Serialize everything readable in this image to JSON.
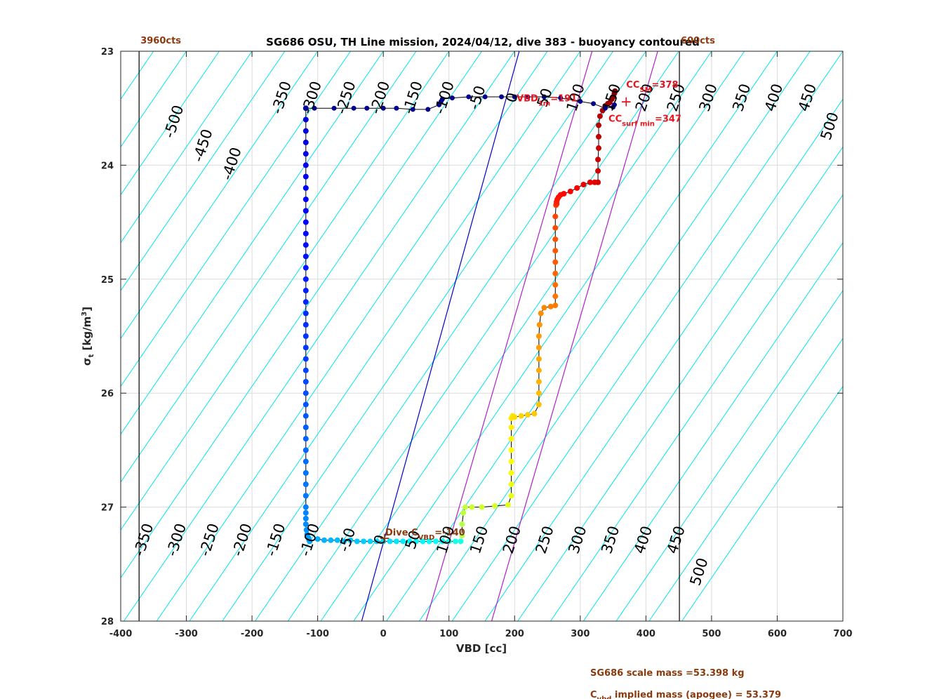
{
  "chart_data": {
    "type": "scatter",
    "title": "SG686 OSU, TH Line mission, 2024/04/12, dive 383 - buoyancy contoured",
    "xlabel": "VBD [cc]",
    "ylabel": "σt [kg/m3]",
    "ylabel_main": "σ",
    "ylabel_sub": "t",
    "ylabel_unit_pre": " [kg/m",
    "ylabel_unit_sup": "3",
    "ylabel_unit_post": "]",
    "xlim": [
      -400,
      700
    ],
    "ylim": [
      28,
      23
    ],
    "y_reversed": true,
    "grid": true,
    "xticks": [
      -400,
      -300,
      -200,
      -100,
      0,
      100,
      200,
      300,
      400,
      500,
      600,
      700
    ],
    "yticks": [
      23,
      24,
      25,
      26,
      27,
      28
    ],
    "contour_slope": 0.0084,
    "contour_levels": [
      -550,
      -500,
      -450,
      -400,
      -350,
      -300,
      -250,
      -200,
      -150,
      -100,
      -50,
      0,
      50,
      100,
      150,
      200,
      250,
      300,
      350,
      400,
      450,
      500,
      550,
      600,
      650,
      700,
      750,
      800,
      850,
      900,
      950,
      1000,
      1050
    ],
    "contour_labels_top": [
      {
        "text": "-500",
        "x": -312,
        "y": 23.63
      },
      {
        "text": "-450",
        "x": -268,
        "y": 23.84
      },
      {
        "text": "-400",
        "x": -224,
        "y": 24.0
      },
      {
        "text": "-350",
        "x": -148,
        "y": 23.42
      },
      {
        "text": "-300",
        "x": -102,
        "y": 23.42
      },
      {
        "text": "-250",
        "x": -50,
        "y": 23.42
      },
      {
        "text": "-200",
        "x": 2,
        "y": 23.42
      },
      {
        "text": "-150",
        "x": 52,
        "y": 23.42
      },
      {
        "text": "-100",
        "x": 100,
        "y": 23.42
      },
      {
        "text": "-50",
        "x": 150,
        "y": 23.42
      },
      {
        "text": "0",
        "x": 203,
        "y": 23.42
      },
      {
        "text": "50",
        "x": 253,
        "y": 23.42
      },
      {
        "text": "100",
        "x": 300,
        "y": 23.42
      },
      {
        "text": "150",
        "x": 355,
        "y": 23.42
      },
      {
        "text": "200",
        "x": 405,
        "y": 23.42
      },
      {
        "text": "250",
        "x": 453,
        "y": 23.42
      },
      {
        "text": "300",
        "x": 502,
        "y": 23.42
      },
      {
        "text": "350",
        "x": 553,
        "y": 23.42
      },
      {
        "text": "400",
        "x": 602,
        "y": 23.42
      },
      {
        "text": "450",
        "x": 653,
        "y": 23.42
      },
      {
        "text": "500",
        "x": 687,
        "y": 23.67
      }
    ],
    "contour_labels_bottom": [
      {
        "text": "-350",
        "x": -358,
        "y": 27.3
      },
      {
        "text": "-300",
        "x": -308,
        "y": 27.3
      },
      {
        "text": "-250",
        "x": -258,
        "y": 27.3
      },
      {
        "text": "-200",
        "x": -208,
        "y": 27.3
      },
      {
        "text": "-150",
        "x": -157,
        "y": 27.3
      },
      {
        "text": "-100",
        "x": -105,
        "y": 27.3
      },
      {
        "text": "-50",
        "x": -48,
        "y": 27.3
      },
      {
        "text": "0",
        "x": 2,
        "y": 27.3
      },
      {
        "text": "50",
        "x": 52,
        "y": 27.3
      },
      {
        "text": "100",
        "x": 102,
        "y": 27.3
      },
      {
        "text": "150",
        "x": 153,
        "y": 27.3
      },
      {
        "text": "200",
        "x": 203,
        "y": 27.3
      },
      {
        "text": "250",
        "x": 253,
        "y": 27.3
      },
      {
        "text": "300",
        "x": 303,
        "y": 27.3
      },
      {
        "text": "350",
        "x": 353,
        "y": 27.3
      },
      {
        "text": "400",
        "x": 403,
        "y": 27.3
      },
      {
        "text": "450",
        "x": 453,
        "y": 27.3
      },
      {
        "text": "500",
        "x": 488,
        "y": 27.58
      }
    ],
    "vertical_lines": [
      {
        "x": -372,
        "label": "3960cts",
        "color": "#000000"
      },
      {
        "x": 451,
        "label": "600cts",
        "color": "#000000"
      }
    ],
    "reference_lines": [
      {
        "color": "#0000c8",
        "p1": [
          -33,
          28
        ],
        "p2": [
          207,
          23
        ]
      },
      {
        "color": "#b020c8",
        "p1": [
          65,
          28
        ],
        "p2": [
          318,
          23
        ]
      },
      {
        "color": "#b020c8",
        "p1": [
          165,
          28
        ],
        "p2": [
          418,
          23
        ]
      }
    ],
    "series": [
      {
        "name": "dive",
        "color_scale": "jet",
        "x": [
          -118,
          -118,
          -118,
          -118,
          -118,
          -118,
          -118,
          -118,
          -118,
          -118,
          -118,
          -118,
          -118,
          -118,
          -118,
          -118,
          -118,
          -118,
          -118,
          -118,
          -118,
          -118,
          -118,
          -118,
          -118,
          -118,
          -118,
          -118,
          -118,
          -118,
          -118,
          -118,
          -118,
          -118,
          -118,
          -118,
          -118,
          -118,
          -118,
          -117,
          -116,
          -114,
          -113,
          -112,
          -100,
          -90,
          -80,
          -70,
          -60,
          -50,
          -40,
          -30,
          -20,
          -10,
          0,
          10,
          20,
          30,
          40,
          50,
          60,
          70,
          80,
          90,
          100,
          110,
          118
        ],
        "y": [
          23.5,
          23.6,
          23.7,
          23.8,
          23.9,
          24.0,
          24.1,
          24.2,
          24.3,
          24.4,
          24.5,
          24.6,
          24.7,
          24.8,
          24.9,
          25.0,
          25.1,
          25.2,
          25.3,
          25.4,
          25.5,
          25.6,
          25.7,
          25.8,
          25.9,
          26.0,
          26.1,
          26.2,
          26.3,
          26.4,
          26.5,
          26.6,
          26.7,
          26.8,
          26.9,
          27.0,
          27.05,
          27.1,
          27.15,
          27.2,
          27.24,
          27.27,
          27.29,
          27.3,
          27.28,
          27.29,
          27.29,
          27.29,
          27.3,
          27.29,
          27.3,
          27.3,
          27.3,
          27.3,
          27.3,
          27.3,
          27.3,
          27.3,
          27.3,
          27.3,
          27.3,
          27.3,
          27.3,
          27.3,
          27.3,
          27.3,
          27.3
        ]
      },
      {
        "name": "climb",
        "color_scale": "jet",
        "x": [
          120,
          120,
          122,
          125,
          135,
          150,
          170,
          190,
          195,
          195,
          195,
          195,
          195,
          195,
          195,
          195,
          197,
          200,
          210,
          220,
          230,
          237,
          237,
          237,
          237,
          237,
          237,
          237,
          238,
          240,
          245,
          255,
          262,
          262,
          262,
          262,
          262,
          262,
          262,
          262,
          262,
          263,
          264,
          264,
          264,
          264,
          264,
          265,
          267,
          270,
          275,
          285,
          295,
          305,
          315,
          322,
          327,
          327,
          327,
          328,
          328,
          328,
          330,
          334,
          338,
          342,
          345,
          348,
          350,
          352,
          353
        ],
        "y": [
          27.25,
          27.15,
          27.05,
          27.0,
          27.0,
          27.0,
          26.99,
          26.98,
          26.9,
          26.8,
          26.7,
          26.6,
          26.5,
          26.4,
          26.3,
          26.22,
          26.2,
          26.21,
          26.2,
          26.19,
          26.18,
          26.1,
          26.0,
          25.9,
          25.8,
          25.7,
          25.6,
          25.5,
          25.4,
          25.3,
          25.25,
          25.24,
          25.23,
          25.15,
          25.05,
          24.95,
          24.85,
          24.75,
          24.65,
          24.55,
          24.45,
          24.35,
          24.34,
          24.34,
          24.34,
          24.33,
          24.32,
          24.3,
          24.28,
          24.26,
          24.25,
          24.23,
          24.2,
          24.17,
          24.15,
          24.15,
          24.15,
          24.05,
          23.95,
          23.85,
          23.75,
          23.65,
          23.57,
          23.52,
          23.48,
          23.46,
          23.45,
          23.42,
          23.4,
          23.37,
          23.35
        ]
      },
      {
        "name": "surface",
        "color": "#00008b",
        "x": [
          -118,
          -105,
          -75,
          -45,
          -25,
          0,
          20,
          45,
          68,
          85,
          88,
          90,
          105,
          130,
          155,
          180,
          200,
          220,
          245,
          270,
          300,
          320,
          338,
          350,
          352
        ],
        "y": [
          23.5,
          23.5,
          23.5,
          23.5,
          23.5,
          23.5,
          23.5,
          23.51,
          23.51,
          23.47,
          23.44,
          23.42,
          23.41,
          23.4,
          23.4,
          23.4,
          23.4,
          23.4,
          23.4,
          23.41,
          23.44,
          23.46,
          23.5,
          23.49,
          23.47
        ]
      }
    ],
    "annotations": [
      {
        "id": "vbd-1m",
        "main": "VBD",
        "sub": "1m",
        "post": "=191",
        "x": 203,
        "y": 23.44,
        "color": "red"
      },
      {
        "id": "cc-sm",
        "main": "CC",
        "sub": "SM",
        "post": "=378",
        "x": 370,
        "y": 23.32,
        "color": "red"
      },
      {
        "id": "cc-surf-min",
        "main": "CC",
        "sub": "surf min",
        "post": "=347",
        "x": 343,
        "y": 23.62,
        "color": "red"
      },
      {
        "id": "dive-cvbd",
        "main": "Dive C",
        "sub": "VBD",
        "post": "=-140",
        "x": 3,
        "y": 27.25,
        "color": "brown"
      }
    ],
    "markers": [
      {
        "id": "cc-sm-plus",
        "x": 370,
        "y": 23.44,
        "symbol": "+",
        "color": "#e8141e"
      },
      {
        "id": "dive-cvbd-plus",
        "x": 2,
        "y": 27.27,
        "symbol": "+",
        "color": "#8b3a0e"
      }
    ],
    "footer_lines": [
      {
        "main": "SG686 scale mass =53.398 kg"
      },
      {
        "main": "C",
        "sub": "vbd",
        "post": " implied mass (apogee) = 53.379"
      }
    ]
  }
}
